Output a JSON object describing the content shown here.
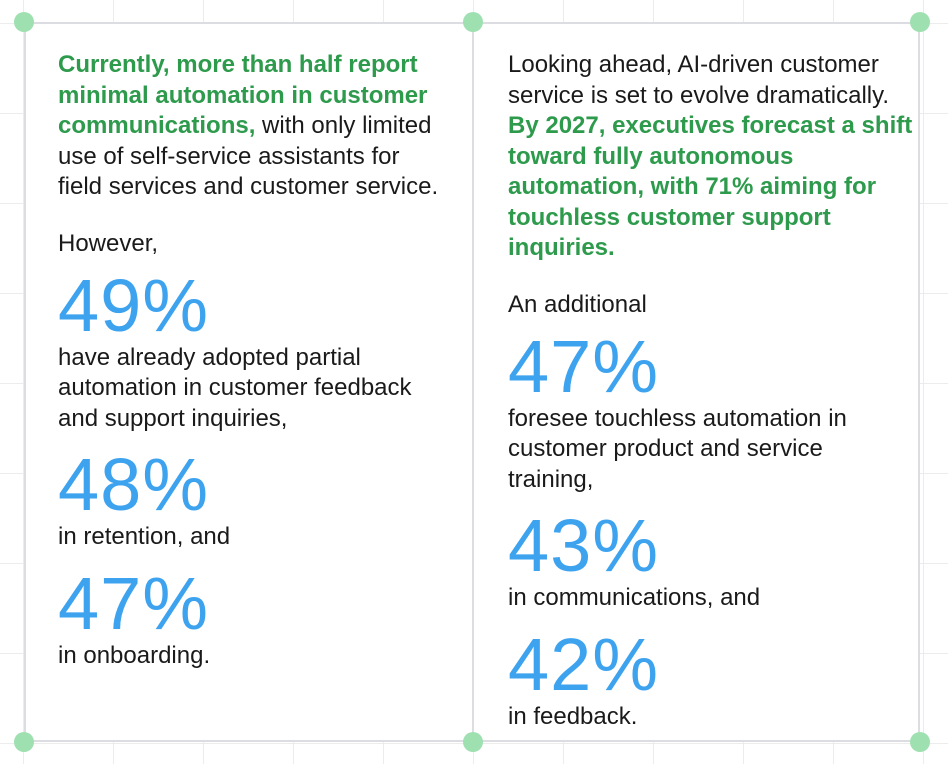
{
  "left": {
    "intro_highlight": "Currently, more than half report minimal automation in customer communications,",
    "intro_rest": " with only limited use of self-service assistants for field services and customer service.",
    "lead": "However,",
    "stats": [
      {
        "value": "49%",
        "text": "have already adopted partial automation in customer feedback and support inquiries,"
      },
      {
        "value": "48%",
        "text": "in retention, and"
      },
      {
        "value": "47%",
        "text": "in onboarding."
      }
    ]
  },
  "right": {
    "intro_plain": "Looking ahead, AI-driven customer service is set to evolve dramatically.",
    "intro_highlight": "By 2027, executives forecast a shift toward fully autonomous automation, with 71% aiming for touchless customer support inquiries.",
    "lead": "An additional",
    "stats": [
      {
        "value": "47%",
        "text": "foresee touchless automation in customer product and service training,"
      },
      {
        "value": "43%",
        "text": "in communications, and"
      },
      {
        "value": "42%",
        "text": "in feedback."
      }
    ]
  },
  "colors": {
    "highlight": "#2d9a4c",
    "stat": "#3ea3ef",
    "dot": "#9fe0b1",
    "border": "#dcdde3"
  }
}
